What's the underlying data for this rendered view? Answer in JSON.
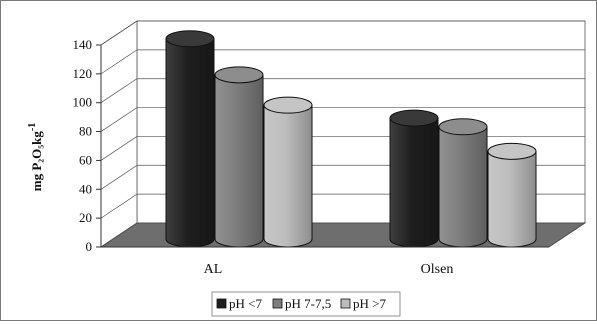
{
  "chart_data": {
    "type": "bar",
    "style": "3d-cylinder",
    "categories": [
      "AL",
      "Olsen"
    ],
    "series": [
      {
        "name": "pH <7",
        "values": [
          136,
          81
        ],
        "color": "#1e1e1e"
      },
      {
        "name": "pH 7-7,5",
        "values": [
          111,
          75
        ],
        "color": "#7d7d7d"
      },
      {
        "name": "pH >7",
        "values": [
          90,
          58
        ],
        "color": "#bdbdbd"
      }
    ],
    "ylabel": "mg P₂O₅kg",
    "ylabel_superscript": "-1",
    "ylim": [
      0,
      140
    ],
    "yticks": [
      "0",
      "20",
      "40",
      "60",
      "80",
      "100",
      "120",
      "140"
    ],
    "grid": true,
    "legend_position": "bottom",
    "floor_color": "#6e6e6e"
  }
}
